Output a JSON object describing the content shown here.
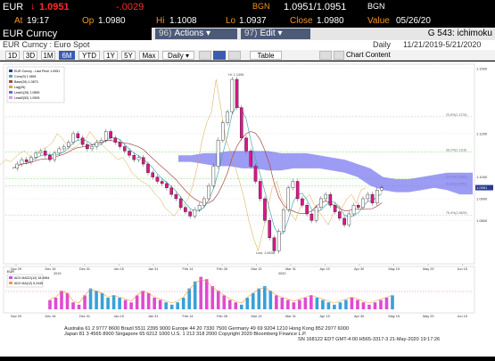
{
  "quote": {
    "ticker": "EUR",
    "arrow": "↓",
    "last": "1.0951",
    "change": "-.0029",
    "bid_label": "BGN",
    "bid_ask": "1.0951/1.0951",
    "bid_src": "BGN",
    "at_label": "At",
    "time": "19:17",
    "op_label": "Op",
    "open": "1.0980",
    "hi_label": "Hi",
    "high": "1.1008",
    "lo_label": "Lo",
    "low": "1.0937",
    "close_label": "Close",
    "close": "1.0980",
    "value_label": "Value",
    "value_date": "05/26/20"
  },
  "toolbar": {
    "title": "EUR Curncy",
    "actions_num": "96)",
    "actions_label": "Actions ▾",
    "edit_num": "97)",
    "edit_label": "Edit ▾",
    "right_label": "G 543: ichimoku"
  },
  "subtitle": {
    "name": "EUR Curncy : Euro Spot",
    "freq": "Daily",
    "range": "11/21/2019-5/21/2020"
  },
  "periods": {
    "items": [
      "1D",
      "3D",
      "1M",
      "6M",
      "YTD",
      "1Y",
      "5Y",
      "Max"
    ],
    "active": "6M",
    "freq_select": "Daily ▾",
    "table_label": "Table",
    "chart_content": "Chart Content"
  },
  "legend": {
    "items": [
      "EUR Curncy - Last Price 1.0951",
      "Conv(9) 1.0891",
      "Base(26) 1.0873",
      "Lag(26)",
      "Lead1(26) 1.0855",
      "Lead2(52) 1.0905"
    ]
  },
  "annotations": {
    "high": "Hi: 1.1496",
    "low": "Low: 1.0636"
  },
  "chart_data": {
    "type": "line",
    "title": "",
    "y_ticks": [
      "1.1500",
      "1.1200",
      "1.1000",
      "1.0951",
      "1.0900",
      "1.0800"
    ],
    "x_ticks": [
      "Nov 29",
      "Dec 16",
      "Dec 31",
      "Jan 15",
      "Jan 31",
      "Feb 14",
      "Feb 28",
      "Mar 13",
      "Mar 31",
      "Apr 15",
      "Apr 30",
      "May 15",
      "May 29",
      "Jun 15"
    ],
    "year_labels": [
      "2019",
      "2020"
    ],
    "fib_labels": [
      "23.6%(1.1278)",
      "38.2%(1.1116)",
      "50.0%(1.0993)",
      "61.8%(1.0960)",
      "76.4%(1.0825)"
    ],
    "price_series": [
      1.104,
      1.106,
      1.108,
      1.107,
      1.109,
      1.111,
      1.112,
      1.11,
      1.108,
      1.111,
      1.113,
      1.114,
      1.116,
      1.12,
      1.118,
      1.115,
      1.113,
      1.114,
      1.116,
      1.117,
      1.121,
      1.118,
      1.116,
      1.114,
      1.112,
      1.11,
      1.108,
      1.109,
      1.106,
      1.102,
      1.1,
      1.098,
      1.097,
      1.095,
      1.092,
      1.09,
      1.086,
      1.084,
      1.082,
      1.085,
      1.087,
      1.09,
      1.096,
      1.105,
      1.117,
      1.125,
      1.13,
      1.145,
      1.132,
      1.118,
      1.112,
      1.105,
      1.098,
      1.09,
      1.08,
      1.072,
      1.066,
      1.075,
      1.085,
      1.095,
      1.098,
      1.09,
      1.087,
      1.083,
      1.08,
      1.086,
      1.09,
      1.092,
      1.087,
      1.084,
      1.081,
      1.078,
      1.083,
      1.087,
      1.086,
      1.09,
      1.092,
      1.088,
      1.094,
      1.095
    ],
    "cloud_top": [
      1.11,
      1.11,
      1.111,
      1.111,
      1.112,
      1.112,
      1.112,
      1.112,
      1.111,
      1.111,
      1.111,
      1.11,
      1.109,
      1.108,
      1.106,
      1.104,
      1.1,
      1.099,
      1.099,
      1.1,
      1.101,
      1.102,
      1.102,
      1.102
    ],
    "cloud_bottom": [
      1.107,
      1.107,
      1.106,
      1.105,
      1.105,
      1.104,
      1.104,
      1.103,
      1.103,
      1.104,
      1.104,
      1.104,
      1.103,
      1.102,
      1.1,
      1.096,
      1.094,
      1.093,
      1.093,
      1.094,
      1.095,
      1.094,
      1.092,
      1.092
    ],
    "sub_panel": {
      "title": "EUR",
      "legend": [
        "ADX MACD(12) 18.4964",
        "ADX MA(12) 5.2445"
      ],
      "bars": [
        4,
        5,
        8,
        7,
        3,
        2,
        6,
        9,
        8,
        7,
        5,
        6,
        5,
        4,
        3,
        6,
        8,
        7,
        5,
        4,
        3,
        2,
        3,
        5,
        9,
        12,
        14,
        13,
        10,
        8,
        6,
        4,
        3,
        2,
        5,
        7,
        9,
        10,
        8,
        6,
        5,
        4,
        3,
        4,
        5,
        6,
        5,
        4,
        3,
        2,
        3,
        4,
        5,
        4,
        3,
        2,
        3,
        4,
        5,
        6
      ]
    },
    "footer": {
      "line1": "Australia 61 2 9777 8600 Brazil 5511 2395 9000 Europe 44 20 7330 7500 Germany 49 69 9204 1210 Hong Kong 852 2977 6000",
      "line2": "Japan 81 3 4565 8900          Singapore 65 6212 1000          U.S. 1 212 318 2000          Copyright 2020 Bloomberg Finance L.P.",
      "line3": "SN 168122 EDT  GMT-4:00 H565-3317-3 21-May-2020 19:17:26"
    }
  }
}
